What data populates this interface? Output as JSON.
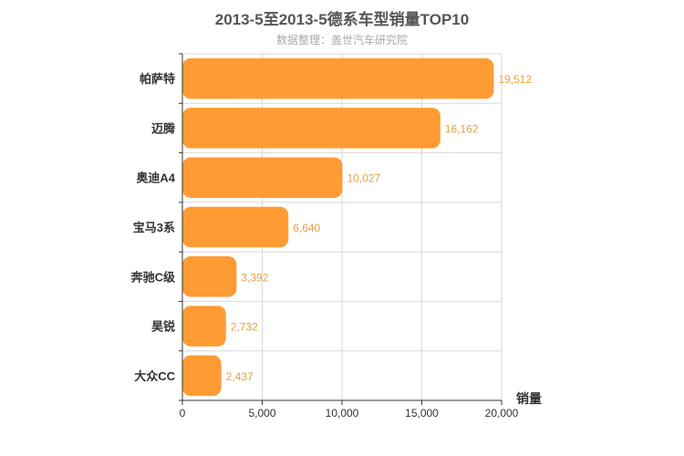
{
  "title": "2013-5至2013-5德系车型销量TOP10",
  "subtitle": "数据整理：盖世汽车研究院",
  "colors": {
    "bar": "#ff9b33",
    "label": "#e8a040",
    "grid": "#d8d8d8",
    "axis": "#333333"
  },
  "chart_data": {
    "type": "bar",
    "orientation": "horizontal",
    "title": "2013-5至2013-5德系车型销量TOP10",
    "subtitle": "数据整理：盖世汽车研究院",
    "categories": [
      "帕萨特",
      "迈腾",
      "奥迪A4",
      "宝马3系",
      "奔驰C级",
      "昊锐",
      "大众CC"
    ],
    "values": [
      19512,
      16162,
      10027,
      6640,
      3392,
      2732,
      2437
    ],
    "value_labels": [
      "19,512",
      "16,162",
      "10,027",
      "6,640",
      "3,392",
      "2,732",
      "2,437"
    ],
    "xlabel": "销量",
    "ylabel": "",
    "xlim": [
      0,
      20000
    ],
    "ticks": [
      0,
      5000,
      10000,
      15000,
      20000
    ],
    "tick_labels": [
      "0",
      "5,000",
      "10,000",
      "15,000",
      "20,000"
    ],
    "grid": true
  }
}
